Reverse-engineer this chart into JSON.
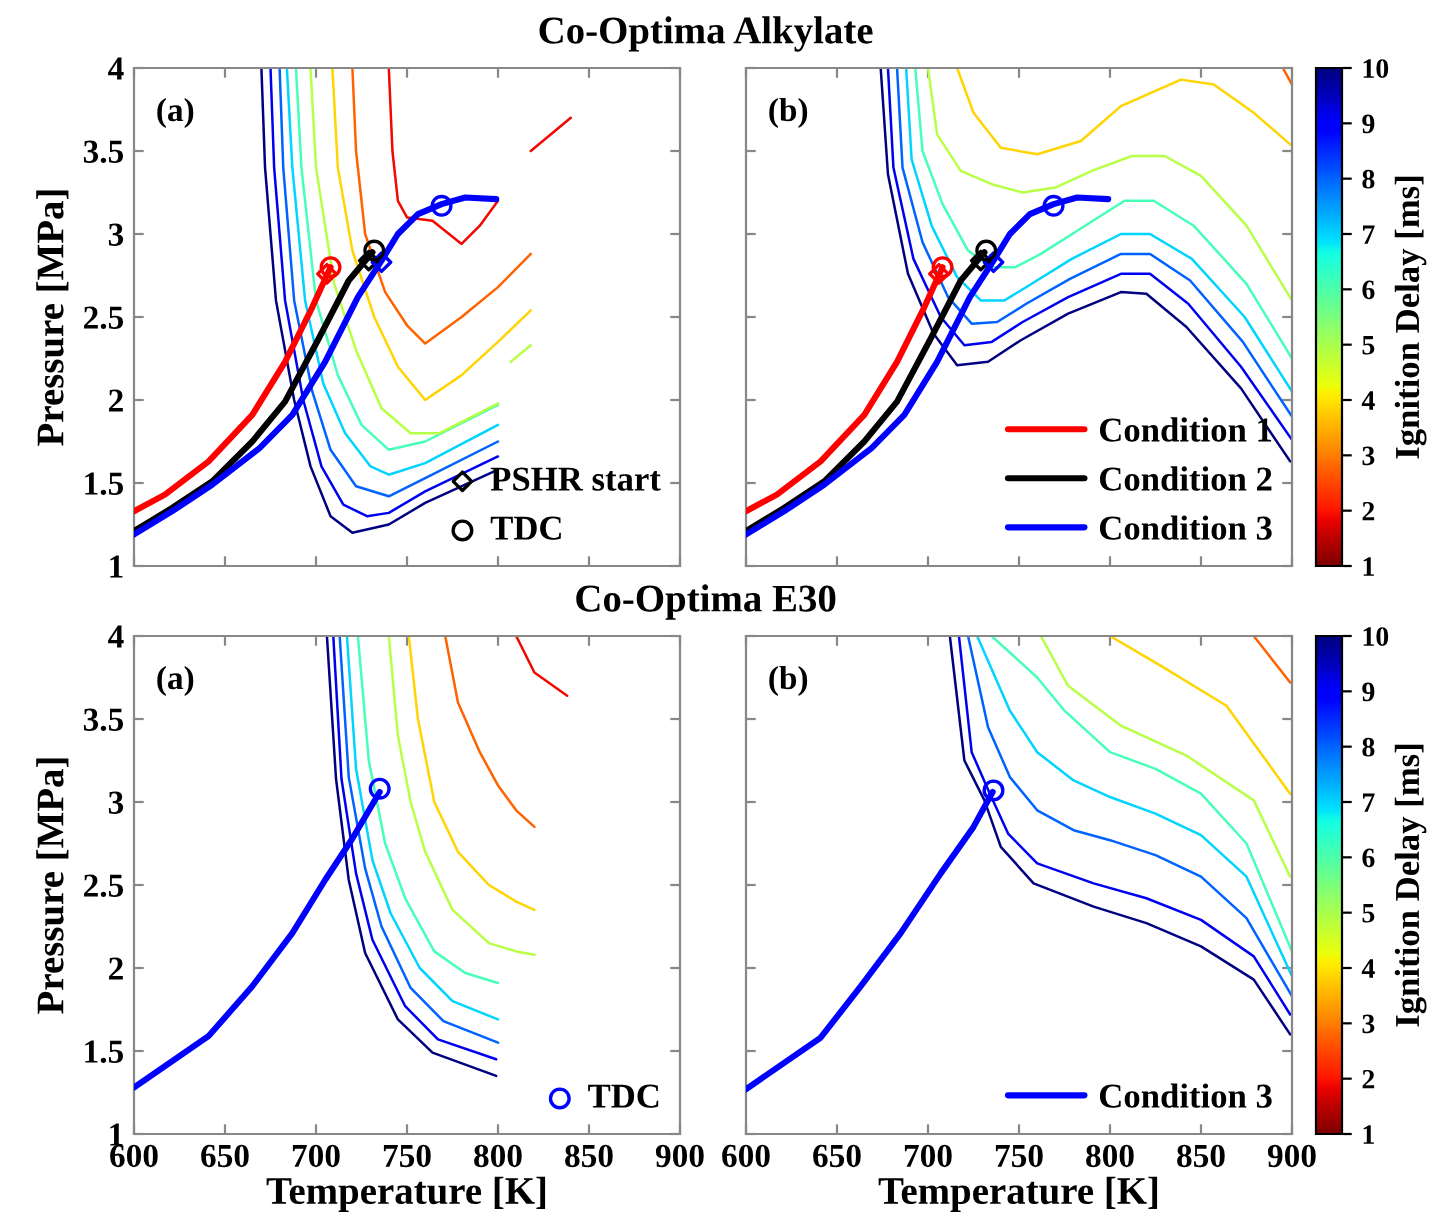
{
  "chart_data": [
    {
      "type": "line",
      "title": "Co-Optima Alkylate",
      "ylabel": "Pressure [MPa]",
      "xlim": [
        600,
        900
      ],
      "ylim": [
        1,
        4
      ],
      "xticks": [
        600,
        650,
        700,
        750,
        800,
        850,
        900
      ],
      "yticks": [
        1,
        1.5,
        2,
        2.5,
        3,
        3.5,
        4
      ],
      "tick_labels": "y",
      "annotations": [
        "(a)"
      ],
      "legend": "bottom right",
      "series": [
        {
          "color": "#000080",
          "x": [
            670,
            672,
            678,
            688,
            697,
            708,
            720,
            740,
            760,
            800
          ],
          "values": [
            4,
            3.4,
            2.6,
            2.0,
            1.6,
            1.3,
            1.2,
            1.25,
            1.38,
            1.58
          ]
        },
        {
          "color": "#0000f1",
          "x": [
            675,
            677,
            683,
            693,
            703,
            715,
            728,
            740,
            760,
            800
          ],
          "values": [
            4,
            3.4,
            2.6,
            2.0,
            1.6,
            1.37,
            1.3,
            1.32,
            1.45,
            1.66
          ]
        },
        {
          "color": "#0063ff",
          "x": [
            680,
            682,
            688,
            698,
            708,
            722,
            740,
            760,
            800
          ],
          "values": [
            4,
            3.4,
            2.6,
            2.05,
            1.7,
            1.48,
            1.42,
            1.53,
            1.75
          ]
        },
        {
          "color": "#00d4ff",
          "x": [
            684,
            687,
            694,
            704,
            716,
            730,
            740,
            760,
            800
          ],
          "values": [
            4,
            3.4,
            2.6,
            2.1,
            1.8,
            1.6,
            1.55,
            1.62,
            1.85
          ]
        },
        {
          "color": "#47ffb8",
          "x": [
            689,
            692,
            700,
            712,
            725,
            740,
            760,
            800
          ],
          "values": [
            4,
            3.4,
            2.6,
            2.15,
            1.85,
            1.7,
            1.75,
            1.97
          ]
        },
        {
          "color": "#b8ff47",
          "x": [
            697,
            700,
            710,
            722,
            736,
            752,
            768,
            800,
            803,
            807,
            818
          ],
          "values": [
            4,
            3.4,
            2.7,
            2.3,
            1.95,
            1.8,
            1.8,
            1.98,
            null,
            2.23,
            2.33
          ]
        },
        {
          "color": "#ffd400",
          "x": [
            709,
            712,
            720,
            732,
            745,
            760,
            780,
            800,
            818
          ],
          "values": [
            4,
            3.4,
            2.9,
            2.5,
            2.2,
            2.0,
            2.15,
            2.35,
            2.54
          ]
        },
        {
          "color": "#ff6300",
          "x": [
            720,
            722,
            727,
            738,
            750,
            760,
            780,
            800,
            818
          ],
          "values": [
            4,
            3.5,
            3.0,
            2.65,
            2.45,
            2.34,
            2.5,
            2.68,
            2.88
          ]
        },
        {
          "color": "#f10800",
          "x": [
            740,
            742,
            745,
            750,
            764,
            780,
            790,
            800,
            810,
            818,
            840
          ],
          "values": [
            4,
            3.5,
            3.2,
            3.1,
            3.08,
            2.94,
            3.05,
            3.2,
            null,
            3.5,
            3.7
          ]
        },
        {
          "color": "#ff0000",
          "x": [
            600,
            617,
            641,
            665,
            683,
            698,
            708
          ],
          "values": [
            1.33,
            1.43,
            1.63,
            1.91,
            2.23,
            2.56,
            2.8
          ]
        },
        {
          "color": "#000000",
          "x": [
            600,
            621,
            643,
            665,
            683,
            701,
            718,
            731
          ],
          "values": [
            1.21,
            1.35,
            1.51,
            1.75,
            1.99,
            2.36,
            2.72,
            2.89
          ]
        },
        {
          "color": "#0000ff",
          "x": [
            600,
            621,
            643,
            669,
            687,
            705,
            723,
            736,
            745,
            756,
            769,
            782,
            799
          ],
          "values": [
            1.19,
            1.33,
            1.49,
            1.71,
            1.91,
            2.23,
            2.62,
            2.84,
            3.0,
            3.12,
            3.18,
            3.22,
            3.21
          ]
        },
        {
          "type": "scatter",
          "name": "PSHR start",
          "marker": "diamond",
          "color": "#000000",
          "colors": [
            "#ff0000",
            "#000000",
            "#0000ff"
          ],
          "x": [
            706,
            729,
            736
          ],
          "values": [
            2.76,
            2.84,
            2.83
          ]
        },
        {
          "type": "scatter",
          "name": "TDC",
          "marker": "circle",
          "color": "#000000",
          "colors": [
            "#ff0000",
            "#000000",
            "#0000ff"
          ],
          "x": [
            708,
            732,
            769
          ],
          "values": [
            2.8,
            2.9,
            3.17
          ]
        }
      ]
    },
    {
      "type": "line",
      "xlim": [
        600,
        900
      ],
      "ylim": [
        1,
        4
      ],
      "xticks": [
        600,
        650,
        700,
        750,
        800,
        850,
        900
      ],
      "yticks": [
        1,
        1.5,
        2,
        2.5,
        3,
        3.5,
        4
      ],
      "tick_labels": false,
      "annotations": [
        "(b)"
      ],
      "legend": "bottom right",
      "clabel": "Ignition Delay [ms]",
      "clim": [
        1,
        10
      ],
      "cticks": [
        1,
        2,
        3,
        4,
        5,
        6,
        7,
        8,
        9,
        10
      ],
      "series": [
        {
          "color": "#000080",
          "x": [
            674,
            678,
            689,
            703,
            716,
            733,
            751,
            777,
            806,
            820,
            842,
            872,
            899
          ],
          "values": [
            4,
            3.36,
            2.76,
            2.4,
            2.21,
            2.23,
            2.36,
            2.52,
            2.65,
            2.64,
            2.44,
            2.07,
            1.63
          ]
        },
        {
          "color": "#0000f1",
          "x": [
            678,
            681,
            692,
            707,
            720,
            735,
            752,
            777,
            806,
            822,
            843,
            872,
            900
          ],
          "values": [
            4,
            3.4,
            2.85,
            2.5,
            2.33,
            2.35,
            2.47,
            2.62,
            2.76,
            2.76,
            2.58,
            2.2,
            1.76
          ]
        },
        {
          "color": "#0063ff",
          "x": [
            683,
            686,
            697,
            711,
            724,
            738,
            754,
            778,
            806,
            822,
            844,
            873,
            900
          ],
          "values": [
            4,
            3.4,
            2.95,
            2.62,
            2.46,
            2.47,
            2.58,
            2.73,
            2.88,
            2.88,
            2.72,
            2.35,
            1.9
          ]
        },
        {
          "color": "#00d4ff",
          "x": [
            688,
            691,
            702,
            716,
            729,
            742,
            757,
            779,
            806,
            822,
            845,
            874,
            900
          ],
          "values": [
            4,
            3.45,
            3.05,
            2.74,
            2.6,
            2.6,
            2.7,
            2.85,
            3.0,
            3.0,
            2.85,
            2.5,
            2.05
          ]
        },
        {
          "color": "#47ffb8",
          "x": [
            693,
            697,
            708,
            722,
            735,
            748,
            762,
            782,
            808,
            824,
            846,
            875,
            900
          ],
          "values": [
            4,
            3.5,
            3.18,
            2.9,
            2.8,
            2.8,
            2.88,
            3.02,
            3.2,
            3.2,
            3.05,
            2.7,
            2.25
          ]
        },
        {
          "color": "#b8ff47",
          "x": [
            700,
            705,
            718,
            735,
            752,
            770,
            790,
            812,
            830,
            850,
            875,
            900
          ],
          "values": [
            4,
            3.6,
            3.38,
            3.3,
            3.25,
            3.28,
            3.38,
            3.47,
            3.47,
            3.35,
            3.05,
            2.6
          ]
        },
        {
          "color": "#ffd400",
          "x": [
            716,
            725,
            740,
            760,
            784,
            806,
            839,
            857,
            879,
            899
          ],
          "values": [
            4,
            3.73,
            3.52,
            3.48,
            3.56,
            3.77,
            3.93,
            3.9,
            3.73,
            3.54
          ]
        },
        {
          "color": "#ff6300",
          "x": [
            895,
            900
          ],
          "values": [
            4,
            3.9
          ]
        },
        {
          "name": "Condition 1",
          "color": "#ff0000",
          "x": [
            600,
            617,
            641,
            665,
            683,
            698,
            708
          ],
          "values": [
            1.33,
            1.43,
            1.63,
            1.91,
            2.23,
            2.56,
            2.8
          ]
        },
        {
          "name": "Condition 2",
          "color": "#000000",
          "x": [
            600,
            621,
            643,
            665,
            683,
            701,
            718,
            731
          ],
          "values": [
            1.21,
            1.35,
            1.51,
            1.75,
            1.99,
            2.36,
            2.72,
            2.89
          ]
        },
        {
          "name": "Condition 3",
          "color": "#0000ff",
          "x": [
            600,
            621,
            643,
            669,
            687,
            705,
            723,
            736,
            745,
            756,
            769,
            782,
            799
          ],
          "values": [
            1.19,
            1.33,
            1.49,
            1.71,
            1.91,
            2.23,
            2.62,
            2.84,
            3.0,
            3.12,
            3.18,
            3.22,
            3.21
          ]
        },
        {
          "type": "scatter",
          "marker": "diamond",
          "color": "#000000",
          "colors": [
            "#ff0000",
            "#000000",
            "#0000ff"
          ],
          "x": [
            706,
            729,
            736
          ],
          "values": [
            2.76,
            2.84,
            2.83
          ]
        },
        {
          "type": "scatter",
          "marker": "circle",
          "color": "#000000",
          "colors": [
            "#ff0000",
            "#000000",
            "#0000ff"
          ],
          "x": [
            708,
            732,
            769
          ],
          "values": [
            2.8,
            2.9,
            3.17
          ]
        }
      ]
    },
    {
      "type": "line",
      "title": "Co-Optima E30",
      "xlabel": "Temperature [K]",
      "ylabel": "Pressure [MPa]",
      "xlim": [
        600,
        900
      ],
      "ylim": [
        1,
        4
      ],
      "xticks": [
        600,
        650,
        700,
        750,
        800,
        850,
        900
      ],
      "yticks": [
        1,
        1.5,
        2,
        2.5,
        3,
        3.5,
        4
      ],
      "annotations": [
        "(a)"
      ],
      "legend": "bottom right",
      "series": [
        {
          "color": "#000080",
          "x": [
            706,
            711,
            718,
            727,
            745,
            764,
            799
          ],
          "values": [
            4,
            3.14,
            2.53,
            2.09,
            1.69,
            1.49,
            1.35
          ]
        },
        {
          "color": "#0000f1",
          "x": [
            709.5,
            714,
            722,
            731,
            749,
            767,
            799
          ],
          "values": [
            4,
            3.14,
            2.57,
            2.17,
            1.77,
            1.57,
            1.45
          ]
        },
        {
          "color": "#0063ff",
          "x": [
            713,
            718,
            727,
            736,
            752,
            770,
            800
          ],
          "values": [
            4,
            3.15,
            2.6,
            2.25,
            1.88,
            1.68,
            1.55
          ]
        },
        {
          "color": "#00d4ff",
          "x": [
            717,
            722,
            731,
            741,
            757,
            775,
            800
          ],
          "values": [
            4,
            3.2,
            2.65,
            2.33,
            2.0,
            1.8,
            1.69
          ]
        },
        {
          "color": "#47ffb8",
          "x": [
            723,
            729,
            738,
            749,
            765,
            782,
            800
          ],
          "values": [
            4,
            3.25,
            2.75,
            2.42,
            2.1,
            1.97,
            1.91
          ]
        },
        {
          "color": "#b8ff47",
          "x": [
            740,
            745,
            752,
            760,
            775,
            795,
            810,
            820
          ],
          "values": [
            4,
            3.4,
            3.0,
            2.7,
            2.35,
            2.15,
            2.1,
            2.08
          ]
        },
        {
          "color": "#ffd400",
          "x": [
            751,
            756,
            765,
            778,
            795,
            810,
            820
          ],
          "values": [
            4,
            3.5,
            3.0,
            2.7,
            2.5,
            2.4,
            2.35
          ]
        },
        {
          "color": "#ff6300",
          "x": [
            771,
            778,
            790,
            800,
            810,
            820
          ],
          "values": [
            4,
            3.6,
            3.3,
            3.1,
            2.95,
            2.85
          ]
        },
        {
          "color": "#f10800",
          "x": [
            810,
            820,
            838
          ],
          "values": [
            4,
            3.78,
            3.64
          ]
        },
        {
          "color": "#0000ff",
          "x": [
            600,
            641,
            665,
            687,
            705,
            720,
            735
          ],
          "values": [
            1.28,
            1.59,
            1.89,
            2.21,
            2.53,
            2.78,
            3.06
          ]
        },
        {
          "type": "scatter",
          "name": "TDC",
          "marker": "circle",
          "color": "#0000ff",
          "colors": [
            "#0000ff"
          ],
          "x": [
            735
          ],
          "values": [
            3.08
          ]
        }
      ]
    },
    {
      "type": "line",
      "xlabel": "Temperature [K]",
      "xlim": [
        600,
        900
      ],
      "ylim": [
        1,
        4
      ],
      "xticks": [
        600,
        650,
        700,
        750,
        800,
        850,
        900
      ],
      "yticks": [
        1,
        1.5,
        2,
        2.5,
        3,
        3.5,
        4
      ],
      "tick_labels": "x",
      "annotations": [
        "(b)"
      ],
      "legend": "bottom right",
      "clabel": "Ignition Delay [ms]",
      "clim": [
        1,
        10
      ],
      "cticks": [
        1,
        2,
        3,
        4,
        5,
        6,
        7,
        8,
        9,
        10
      ],
      "series": [
        {
          "color": "#000080",
          "x": [
            712,
            720,
            731,
            740,
            758,
            791,
            820,
            850,
            879,
            899
          ],
          "values": [
            4,
            3.25,
            3.01,
            2.73,
            2.51,
            2.37,
            2.27,
            2.13,
            1.93,
            1.6
          ]
        },
        {
          "color": "#0000f1",
          "x": [
            717,
            724,
            734,
            744,
            760,
            791,
            820,
            850,
            879,
            899
          ],
          "values": [
            4,
            3.3,
            3.05,
            2.81,
            2.63,
            2.51,
            2.42,
            2.29,
            2.07,
            1.72
          ]
        },
        {
          "color": "#0063ff",
          "x": [
            722,
            733,
            745,
            760,
            780,
            800,
            825,
            850,
            875,
            900
          ],
          "values": [
            4,
            3.45,
            3.15,
            2.95,
            2.83,
            2.77,
            2.68,
            2.55,
            2.3,
            1.83
          ]
        },
        {
          "color": "#00d4ff",
          "x": [
            727,
            745,
            760,
            780,
            800,
            825,
            850,
            875,
            900
          ],
          "values": [
            4,
            3.55,
            3.3,
            3.13,
            3.03,
            2.93,
            2.8,
            2.55,
            1.95
          ]
        },
        {
          "color": "#47ffb8",
          "x": [
            735,
            760,
            775,
            800,
            825,
            850,
            875,
            900
          ],
          "values": [
            4,
            3.75,
            3.55,
            3.3,
            3.2,
            3.05,
            2.75,
            2.1
          ]
        },
        {
          "color": "#b8ff47",
          "x": [
            762,
            777,
            806,
            842,
            879,
            899
          ],
          "values": [
            4,
            3.7,
            3.46,
            3.28,
            3.01,
            2.55
          ]
        },
        {
          "color": "#ffd400",
          "x": [
            800,
            828,
            864,
            899
          ],
          "values": [
            4,
            3.82,
            3.58,
            3.05
          ]
        },
        {
          "color": "#ff6300",
          "x": [
            879,
            899
          ],
          "values": [
            4,
            3.72
          ]
        },
        {
          "name": "Condition 3",
          "color": "#0000ff",
          "x": [
            600,
            641,
            663,
            685,
            707,
            725,
            735.5
          ],
          "values": [
            1.27,
            1.58,
            1.89,
            2.21,
            2.57,
            2.85,
            3.06
          ]
        },
        {
          "type": "scatter",
          "marker": "circle",
          "color": "#000000",
          "colors": [
            "#0000ff"
          ],
          "x": [
            736
          ],
          "values": [
            3.07
          ]
        }
      ]
    }
  ]
}
